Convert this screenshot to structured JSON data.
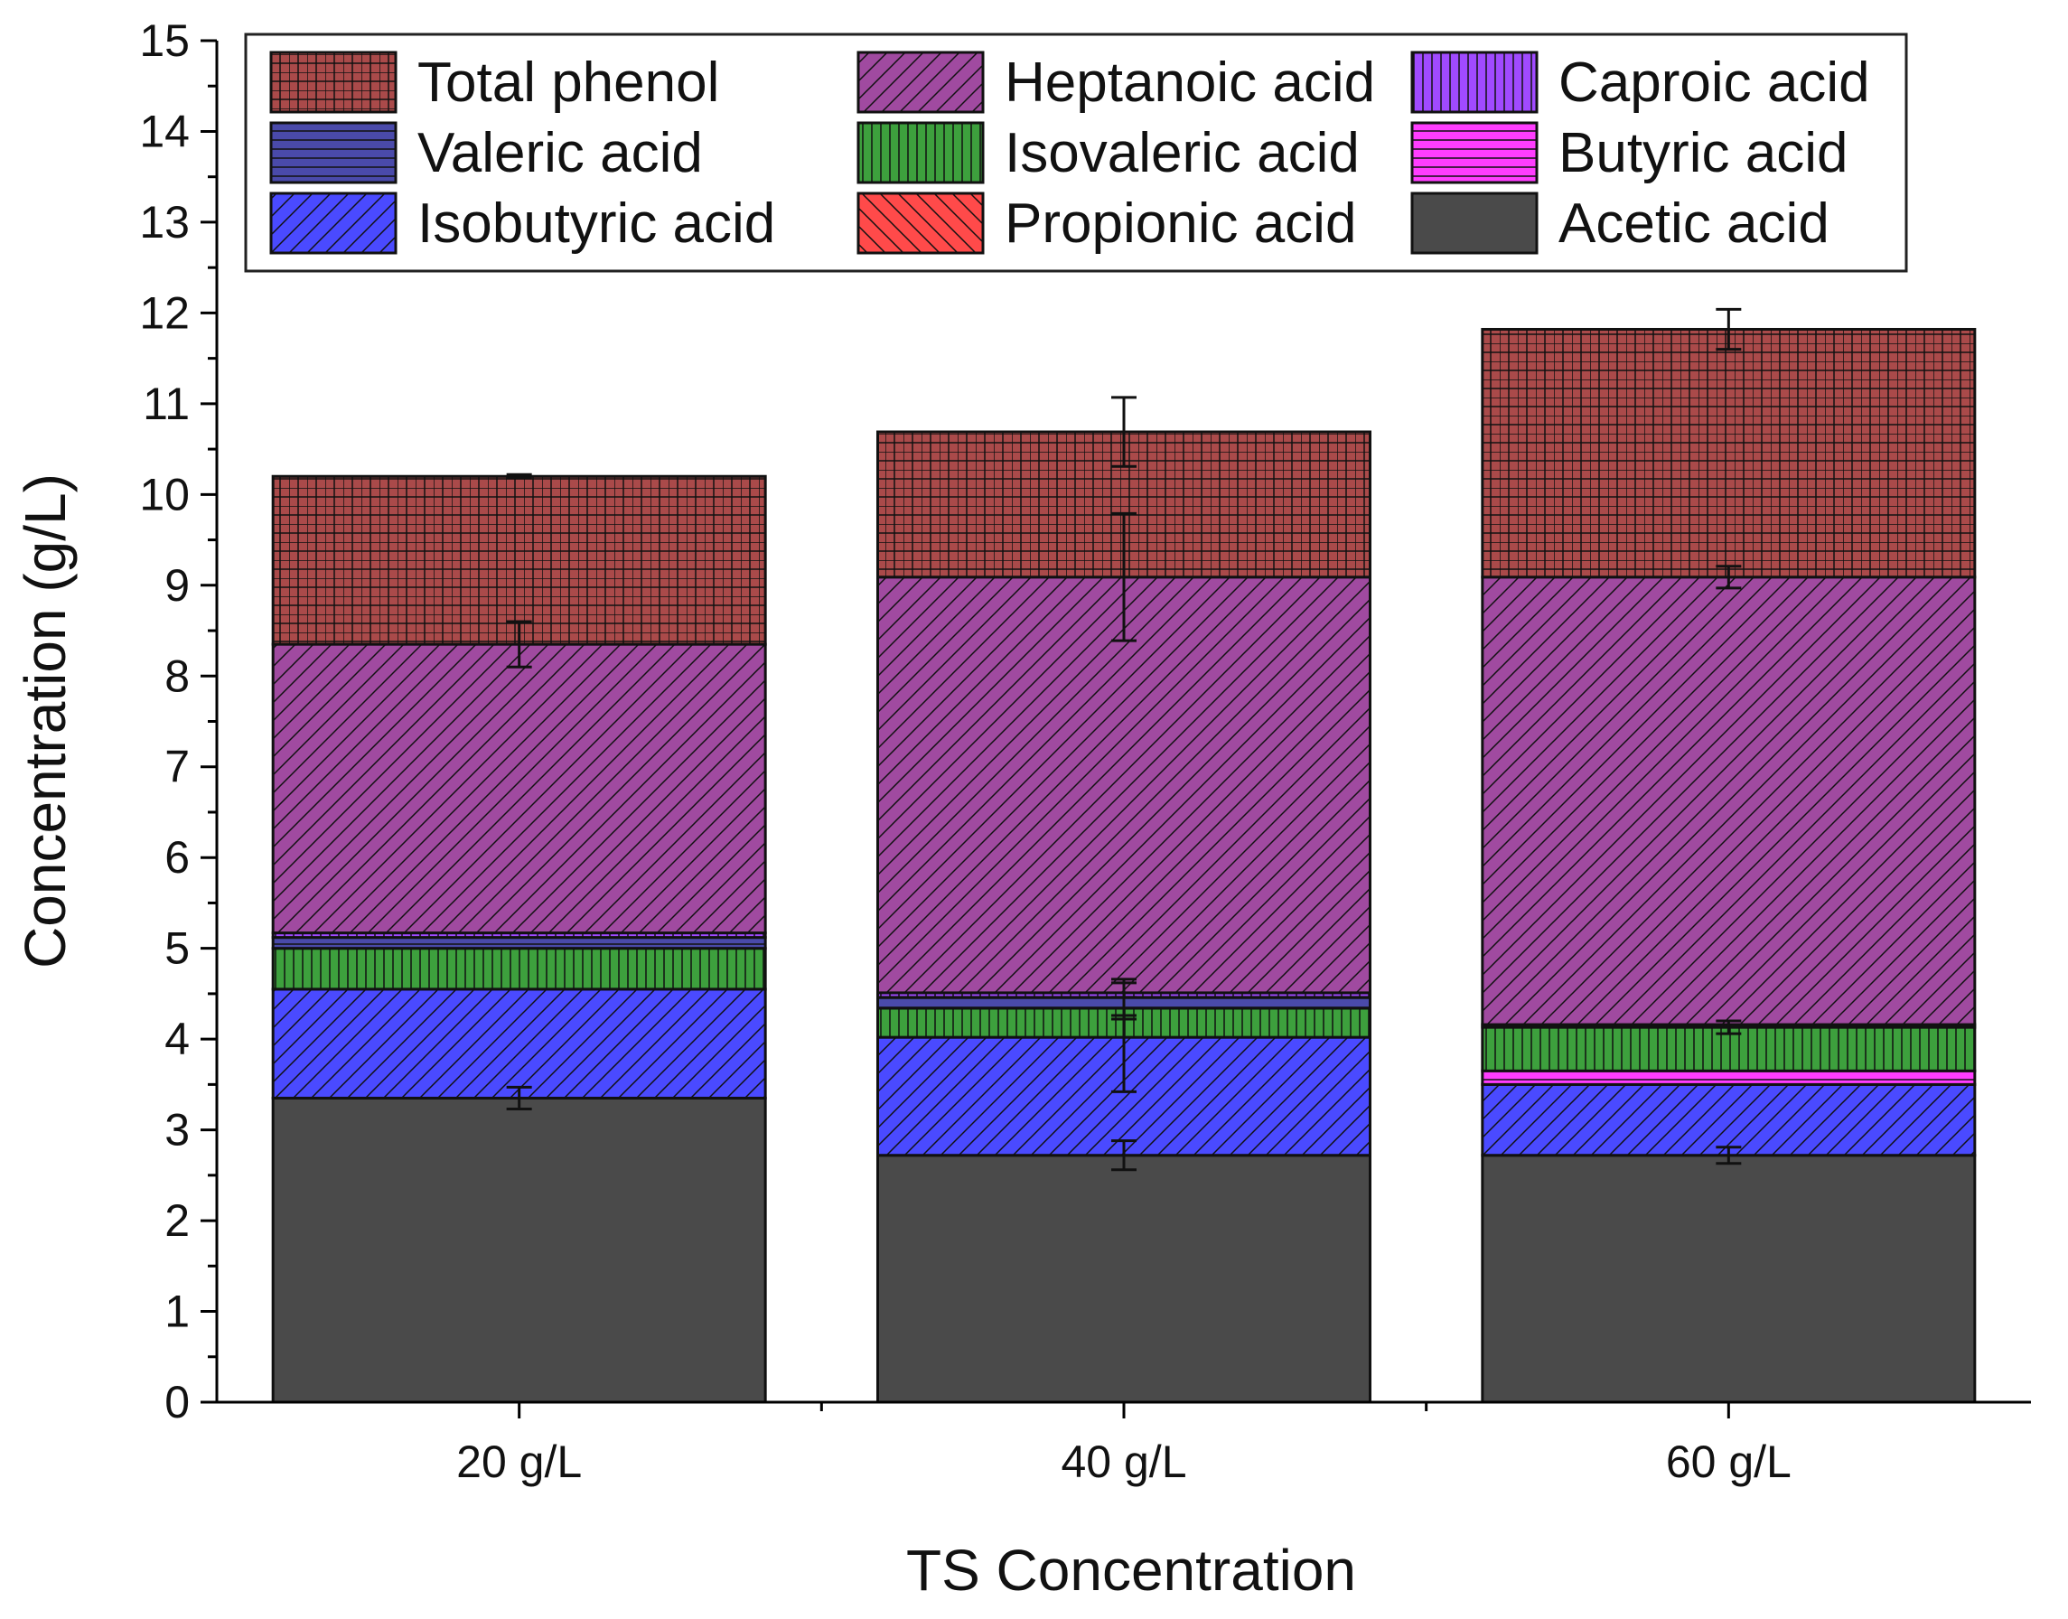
{
  "chart_data": {
    "type": "bar",
    "stacked": true,
    "xlabel": "TS Concentration",
    "ylabel": "Concentration (g/L)",
    "ylim": [
      0,
      15
    ],
    "yticks": [
      "0",
      "1",
      "2",
      "3",
      "4",
      "5",
      "6",
      "7",
      "8",
      "9",
      "10",
      "11",
      "12",
      "13",
      "14",
      "15"
    ],
    "categories": [
      "20 g/L",
      "40 g/L",
      "60 g/L"
    ],
    "legend_position": "top",
    "legend_order": [
      "Total phenol",
      "Heptanoic acid",
      "Caproic acid",
      "Valeric acid",
      "Isovaleric acid",
      "Butyric acid",
      "Isobutyric acid",
      "Propionic acid",
      "Acetic acid"
    ],
    "series": [
      {
        "name": "Acetic acid",
        "color": "#4a4a4a",
        "pattern": "solid",
        "values": [
          3.35,
          2.72,
          2.72
        ],
        "errors": [
          0.12,
          0.16,
          0.09
        ]
      },
      {
        "name": "Propionic acid",
        "color": "#ff4a4a",
        "pattern": "back-diag",
        "values": [
          0.0,
          0.0,
          0.0
        ],
        "errors": [
          0,
          0,
          0
        ]
      },
      {
        "name": "Isobutyric acid",
        "color": "#4a4aff",
        "pattern": "diag",
        "values": [
          1.2,
          1.3,
          0.78
        ],
        "errors": [
          0,
          0.6,
          0
        ]
      },
      {
        "name": "Butyric acid",
        "color": "#ff3dff",
        "pattern": "horizontal",
        "values": [
          0.0,
          0.0,
          0.15
        ],
        "errors": [
          0,
          0,
          0
        ]
      },
      {
        "name": "Isovaleric acid",
        "color": "#3da03d",
        "pattern": "vertical",
        "values": [
          0.45,
          0.32,
          0.48
        ],
        "errors": [
          0,
          0.12,
          0.07
        ]
      },
      {
        "name": "Valeric acid",
        "color": "#4a4aaa",
        "pattern": "horizontal",
        "values": [
          0.12,
          0.12,
          0.03
        ],
        "errors": [
          0,
          0.2,
          0
        ]
      },
      {
        "name": "Caproic acid",
        "color": "#a04aff",
        "pattern": "vertical",
        "values": [
          0.05,
          0.05,
          0.0
        ],
        "errors": [
          0,
          0,
          0
        ]
      },
      {
        "name": "Heptanoic acid",
        "color": "#a04aa0",
        "pattern": "diag",
        "values": [
          3.18,
          4.58,
          4.93
        ],
        "errors": [
          0.25,
          0.7,
          0.12
        ]
      },
      {
        "name": "Total phenol",
        "color": "#aa4a4a",
        "pattern": "grid",
        "values": [
          1.85,
          1.6,
          2.73
        ],
        "errors": [
          0.02,
          0.38,
          0.22
        ]
      }
    ]
  }
}
